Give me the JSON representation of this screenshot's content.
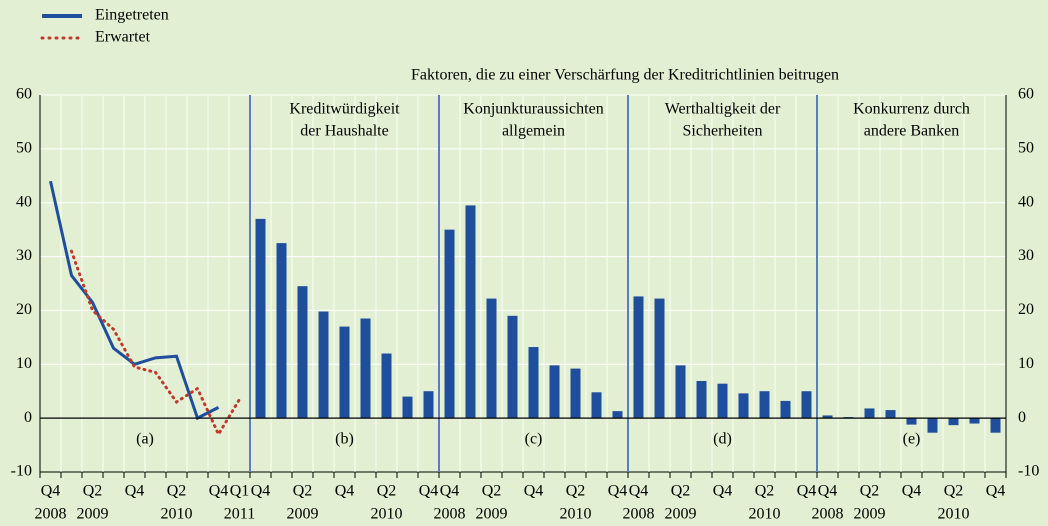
{
  "chart_data": {
    "type": "panels",
    "title": "Faktoren, die zu einer Verschärfung der Kreditrichtlinien beitrugen",
    "ylim": [
      -10,
      60
    ],
    "yticks": [
      -10,
      0,
      10,
      20,
      30,
      40,
      50,
      60
    ],
    "grid": true,
    "panels": [
      {
        "type": "line",
        "label": "(a)",
        "categories": [
          "Q4",
          null,
          "Q2",
          null,
          "Q4",
          null,
          "Q2",
          null,
          "Q4",
          "Q1"
        ],
        "years": [
          "2008",
          null,
          "2009",
          null,
          null,
          null,
          "2010",
          null,
          null,
          "2011"
        ],
        "series": [
          {
            "name": "Eingetreten",
            "color": "#1f4e9c",
            "style": "solid",
            "values": [
              44,
              26.5,
              21.5,
              13,
              10,
              11.2,
              11.5,
              0,
              2,
              null
            ]
          },
          {
            "name": "Erwartet",
            "color": "#c0392b",
            "style": "dotted",
            "values": [
              null,
              31,
              20,
              16.5,
              9.5,
              8.5,
              3,
              5.5,
              -3,
              3.5
            ]
          }
        ]
      },
      {
        "type": "bar",
        "title": [
          "Kreditwürdigkeit",
          "der Haushalte"
        ],
        "label": "(b)",
        "color": "#1f4e9c",
        "categories": [
          "Q4",
          null,
          "Q2",
          null,
          "Q4",
          null,
          "Q2",
          null,
          "Q4"
        ],
        "years": [
          null,
          null,
          "2009",
          null,
          null,
          null,
          "2010",
          null,
          null
        ],
        "values": [
          37,
          32.5,
          24.5,
          19.8,
          17,
          18.5,
          12,
          4,
          5
        ]
      },
      {
        "type": "bar",
        "title": [
          "Konjunkturaussichten",
          "allgemein"
        ],
        "label": "(c)",
        "color": "#1f4e9c",
        "categories": [
          "Q4",
          null,
          "Q2",
          null,
          "Q4",
          null,
          "Q2",
          null,
          "Q4"
        ],
        "years": [
          "2008",
          null,
          "2009",
          null,
          null,
          null,
          "2010",
          null,
          null
        ],
        "values": [
          35,
          39.5,
          22.2,
          19,
          13.2,
          9.8,
          9.2,
          4.8,
          1.3
        ]
      },
      {
        "type": "bar",
        "title": [
          "Werthaltigkeit der",
          "Sicherheiten"
        ],
        "label": "(d)",
        "color": "#1f4e9c",
        "categories": [
          "Q4",
          null,
          "Q2",
          null,
          "Q4",
          null,
          "Q2",
          null,
          "Q4"
        ],
        "years": [
          "2008",
          null,
          "2009",
          null,
          null,
          null,
          "2010",
          null,
          null
        ],
        "values": [
          22.6,
          22.2,
          9.8,
          6.9,
          6.4,
          4.6,
          5,
          3.2,
          5
        ]
      },
      {
        "type": "bar",
        "title": [
          "Konkurrenz durch",
          "andere Banken"
        ],
        "label": "(e)",
        "color": "#1f4e9c",
        "categories": [
          "Q4",
          null,
          "Q2",
          null,
          "Q4",
          null,
          "Q2",
          null,
          "Q4"
        ],
        "years": [
          "2008",
          null,
          "2009",
          null,
          null,
          null,
          "2010",
          null,
          null
        ],
        "values": [
          0.5,
          0.2,
          1.8,
          1.5,
          -1.2,
          -2.7,
          -1.3,
          -1,
          -2.7
        ]
      }
    ]
  }
}
